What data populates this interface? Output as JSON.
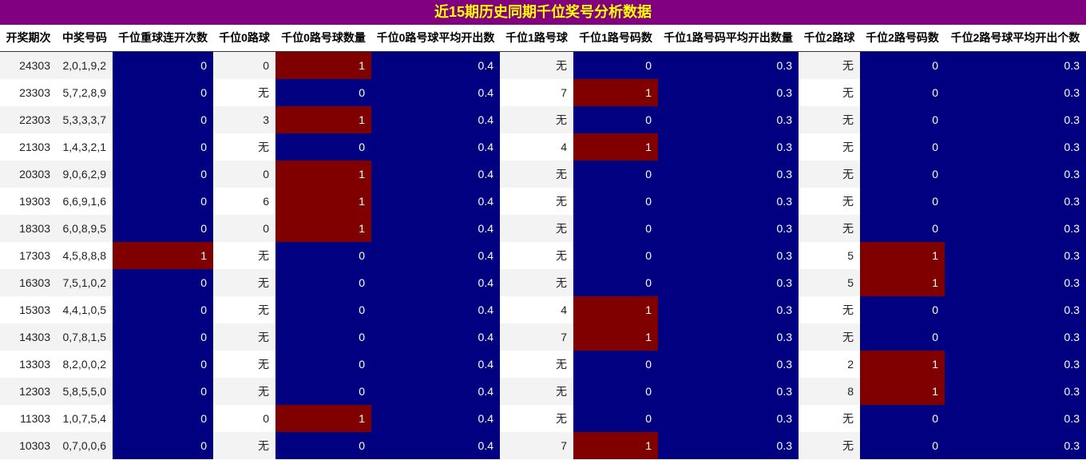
{
  "title": "近15期历史同期千位奖号分析数据",
  "table": {
    "header": [
      "开奖期次",
      "中奖号码",
      "千位重球连开次数",
      "千位0路球",
      "千位0路号球数量",
      "千位0路号球平均开出数",
      "千位1路号球",
      "千位1路号码数",
      "千位1路号码平均开出数量",
      "千位2路球",
      "千位2路号码数",
      "千位2路号球平均开出个数"
    ],
    "rows": [
      [
        "24303",
        "2,0,1,9,2",
        "0",
        "0",
        "1",
        "0.4",
        "无",
        "0",
        "0.3",
        "无",
        "0",
        "0.3"
      ],
      [
        "23303",
        "5,7,2,8,9",
        "0",
        "无",
        "0",
        "0.4",
        "7",
        "1",
        "0.3",
        "无",
        "0",
        "0.3"
      ],
      [
        "22303",
        "5,3,3,3,7",
        "0",
        "3",
        "1",
        "0.4",
        "无",
        "0",
        "0.3",
        "无",
        "0",
        "0.3"
      ],
      [
        "21303",
        "1,4,3,2,1",
        "0",
        "无",
        "0",
        "0.4",
        "4",
        "1",
        "0.3",
        "无",
        "0",
        "0.3"
      ],
      [
        "20303",
        "9,0,6,2,9",
        "0",
        "0",
        "1",
        "0.4",
        "无",
        "0",
        "0.3",
        "无",
        "0",
        "0.3"
      ],
      [
        "19303",
        "6,6,9,1,6",
        "0",
        "6",
        "1",
        "0.4",
        "无",
        "0",
        "0.3",
        "无",
        "0",
        "0.3"
      ],
      [
        "18303",
        "6,0,8,9,5",
        "0",
        "0",
        "1",
        "0.4",
        "无",
        "0",
        "0.3",
        "无",
        "0",
        "0.3"
      ],
      [
        "17303",
        "4,5,8,8,8",
        "1",
        "无",
        "0",
        "0.4",
        "无",
        "0",
        "0.3",
        "5",
        "1",
        "0.3"
      ],
      [
        "16303",
        "7,5,1,0,2",
        "0",
        "无",
        "0",
        "0.4",
        "无",
        "0",
        "0.3",
        "5",
        "1",
        "0.3"
      ],
      [
        "15303",
        "4,4,1,0,5",
        "0",
        "无",
        "0",
        "0.4",
        "4",
        "1",
        "0.3",
        "无",
        "0",
        "0.3"
      ],
      [
        "14303",
        "0,7,8,1,5",
        "0",
        "无",
        "0",
        "0.4",
        "7",
        "1",
        "0.3",
        "无",
        "0",
        "0.3"
      ],
      [
        "13303",
        "8,2,0,0,2",
        "0",
        "无",
        "0",
        "0.4",
        "无",
        "0",
        "0.3",
        "2",
        "1",
        "0.3"
      ],
      [
        "12303",
        "5,8,5,5,0",
        "0",
        "无",
        "0",
        "0.4",
        "无",
        "0",
        "0.3",
        "8",
        "1",
        "0.3"
      ],
      [
        "11303",
        "1,0,7,5,4",
        "0",
        "0",
        "1",
        "0.4",
        "无",
        "0",
        "0.3",
        "无",
        "0",
        "0.3"
      ],
      [
        "10303",
        "0,7,0,0,6",
        "0",
        "无",
        "0",
        "0.4",
        "7",
        "1",
        "0.3",
        "无",
        "0",
        "0.3"
      ]
    ]
  }
}
